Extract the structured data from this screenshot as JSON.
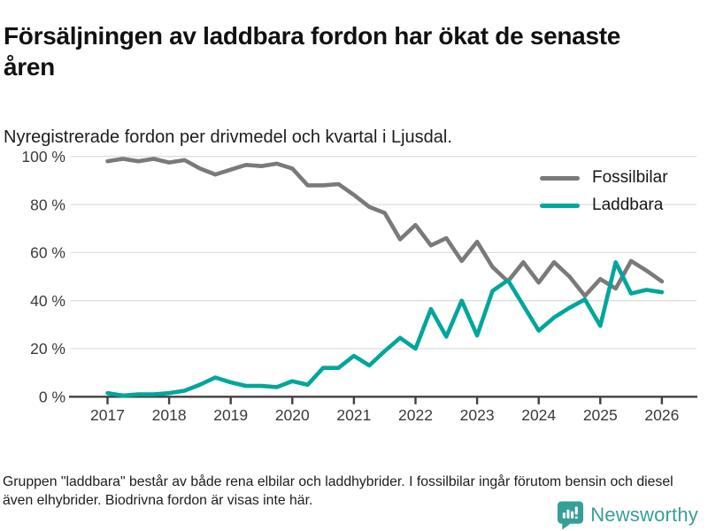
{
  "header": {
    "title": "Försäljningen av laddbara fordon har ökat de senaste åren",
    "subtitle": "Nyregistrerade fordon per drivmedel och kvartal i Ljusdal."
  },
  "chart_data": {
    "type": "line",
    "x_unit": "quarter",
    "x_start_quarter": "2017 Q1",
    "x_end_quarter": "2026 Q1",
    "x_tick_labels": [
      "2017",
      "2018",
      "2019",
      "2020",
      "2021",
      "2022",
      "2023",
      "2024",
      "2025",
      "2026"
    ],
    "y_tick_labels": [
      "0 %",
      "20 %",
      "40 %",
      "60 %",
      "80 %",
      "100 %"
    ],
    "ylim": [
      0,
      100
    ],
    "grid": true,
    "legend_position": "top-right",
    "colors": {
      "grid": "#dedede",
      "axis": "#404040",
      "tick_text": "#3a3a3a"
    },
    "series": [
      {
        "name": "Fossilbilar",
        "color": "#7a7a7a",
        "values": [
          98,
          99,
          98,
          99,
          97.5,
          98.5,
          95,
          92.5,
          94.5,
          96.5,
          96,
          97,
          95,
          88,
          88,
          88.5,
          84,
          79,
          76.5,
          65.5,
          71.5,
          63,
          66,
          56.5,
          64.5,
          54,
          48,
          56,
          47.5,
          56,
          50,
          42,
          49,
          45,
          56.5,
          52.5,
          48
        ]
      },
      {
        "name": "Laddbara",
        "color": "#00a69c",
        "values": [
          1.5,
          0.5,
          1,
          1,
          1.5,
          2.5,
          5,
          8,
          6,
          4.5,
          4.5,
          4,
          6.5,
          5,
          12,
          12,
          17,
          13,
          19,
          24.5,
          20,
          36.5,
          25,
          40,
          25.5,
          44,
          48.5,
          38,
          27.5,
          33,
          37,
          40.5,
          29.5,
          56,
          43,
          44.5,
          43.5
        ]
      }
    ]
  },
  "footer": {
    "note": "Gruppen \"laddbara\" består av både rena elbilar och laddhybrider. I fossilbilar ingår förutom bensin och diesel även elhybrider. Biodrivna fordon är visas inte här.",
    "brand": "Newsworthy",
    "brand_color": "#359f98"
  }
}
